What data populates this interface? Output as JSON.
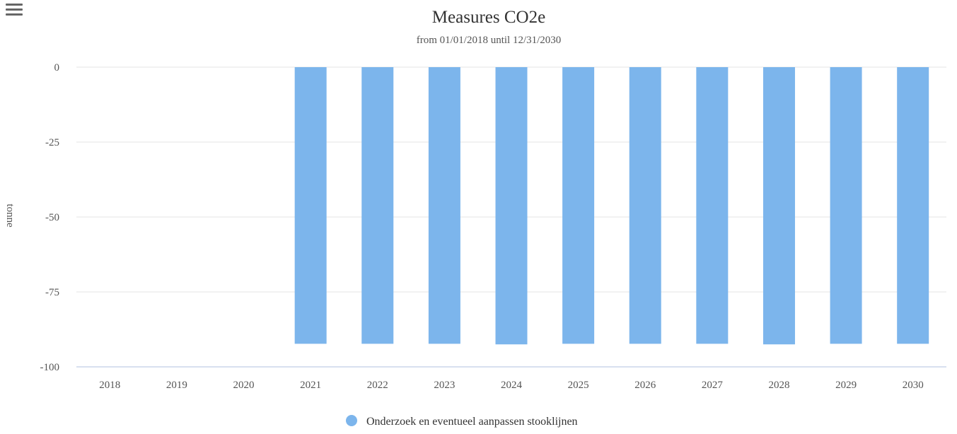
{
  "menu": {
    "icon": "hamburger-menu-icon"
  },
  "chart_data": {
    "type": "bar",
    "title": "Measures CO2e",
    "subtitle": "from 01/01/2018 until 12/31/2030",
    "xlabel": "",
    "ylabel": "tonne",
    "ylim": [
      -100,
      0
    ],
    "yticks": [
      0,
      -25,
      -50,
      -75,
      -100
    ],
    "grid": true,
    "legend_position": "bottom-center",
    "categories": [
      "2018",
      "2019",
      "2020",
      "2021",
      "2022",
      "2023",
      "2024",
      "2025",
      "2026",
      "2027",
      "2028",
      "2029",
      "2030"
    ],
    "series": [
      {
        "name": "Onderzoek en eventueel aanpassen stooklijnen",
        "color": "#7cb5ec",
        "values": [
          0,
          0,
          0,
          -92.3,
          -92.3,
          -92.3,
          -92.5,
          -92.3,
          -92.3,
          -92.3,
          -92.5,
          -92.3,
          -92.3
        ]
      }
    ]
  }
}
